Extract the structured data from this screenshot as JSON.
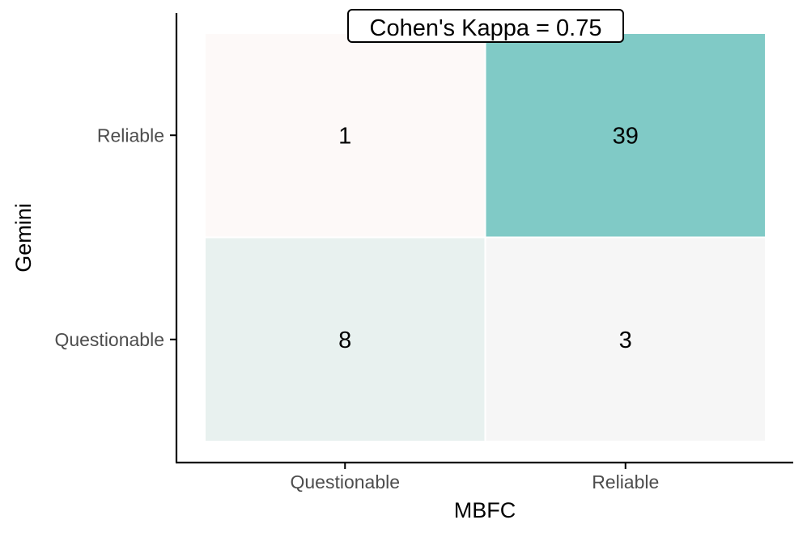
{
  "chart_data": {
    "type": "heatmap",
    "title": "",
    "xlabel": "MBFC",
    "ylabel": "Gemini",
    "x_categories": [
      "Questionable",
      "Reliable"
    ],
    "y_categories": [
      "Questionable",
      "Reliable"
    ],
    "cells": [
      {
        "x": "Questionable",
        "y": "Reliable",
        "value": 1
      },
      {
        "x": "Reliable",
        "y": "Reliable",
        "value": 39
      },
      {
        "x": "Questionable",
        "y": "Questionable",
        "value": 8
      },
      {
        "x": "Reliable",
        "y": "Questionable",
        "value": 3
      }
    ],
    "annotation": "Cohen's Kappa = 0.75",
    "colors": {
      "agree_high": "#80cac6",
      "agree_low": "#e8f1ef",
      "disagree_high": "#f6f6f6",
      "disagree_low": "#fdf9f8",
      "axis": "#000000",
      "tick_label": "#4d4d4d"
    },
    "grid": false
  }
}
